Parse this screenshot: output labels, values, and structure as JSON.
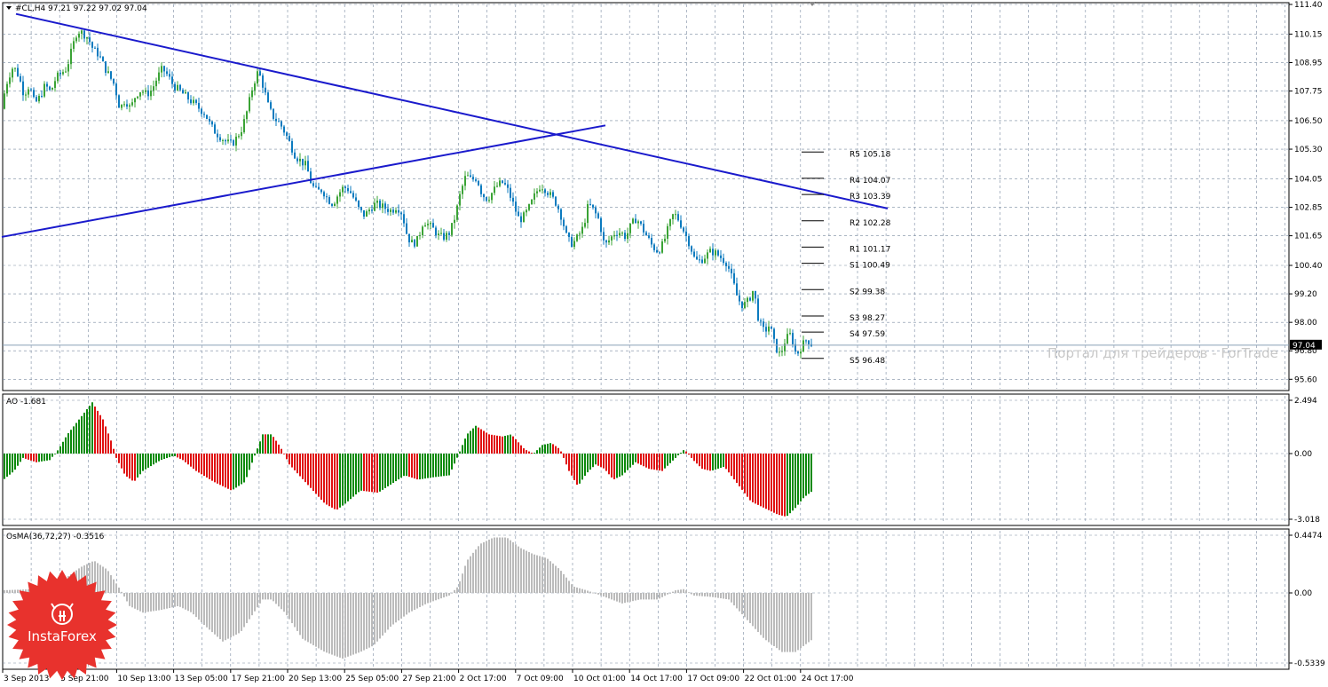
{
  "header": {
    "text": "#CL,H4  97.21 97.22 97.02 97.04"
  },
  "watermark": "Портал для трейдеров - ForTrade",
  "logo": {
    "text": "InstaForex",
    "icon": "bull-head-icon",
    "color": "#e8322d"
  },
  "colors": {
    "candle_up": "#3aa335",
    "candle_down": "#0c7bbf",
    "trendline": "#1a1acc",
    "ao_up": "#0a8a0a",
    "ao_down": "#e01010",
    "osma": "#bbbbbb",
    "price_tag_bg": "#000000"
  },
  "chart_data": [
    {
      "type": "candlestick",
      "title": "#CL,H4",
      "ohlc": [
        97.21,
        97.22,
        97.02,
        97.04
      ],
      "current_price": "97.04",
      "ylim": [
        95.2,
        111.4
      ],
      "y_ticks": [
        "111.40",
        "110.15",
        "108.95",
        "107.75",
        "106.50",
        "105.30",
        "104.05",
        "102.85",
        "101.65",
        "100.40",
        "99.20",
        "98.00",
        "96.80",
        "95.60"
      ],
      "x_ticks": [
        "3 Sep 2013",
        "5 Sep 21:00",
        "10 Sep 13:00",
        "13 Sep 05:00",
        "17 Sep 21:00",
        "20 Sep 13:00",
        "25 Sep 05:00",
        "27 Sep 21:00",
        "2 Oct 17:00",
        "7 Oct 09:00",
        "10 Oct 01:00",
        "14 Oct 17:00",
        "17 Oct 09:00",
        "22 Oct 01:00",
        "24 Oct 17:00"
      ],
      "path_points": [
        [
          0,
          107.0
        ],
        [
          8,
          108.3
        ],
        [
          14,
          108.8
        ],
        [
          20,
          108.4
        ],
        [
          26,
          107.6
        ],
        [
          32,
          108.0
        ],
        [
          38,
          107.2
        ],
        [
          44,
          107.5
        ],
        [
          50,
          108.0
        ],
        [
          56,
          107.7
        ],
        [
          62,
          108.3
        ],
        [
          68,
          108.5
        ],
        [
          74,
          108.7
        ],
        [
          80,
          109.5
        ],
        [
          86,
          110.3
        ],
        [
          92,
          110.2
        ],
        [
          98,
          110.0
        ],
        [
          104,
          109.5
        ],
        [
          110,
          109.3
        ],
        [
          116,
          108.8
        ],
        [
          122,
          108.4
        ],
        [
          128,
          108.0
        ],
        [
          134,
          107.0
        ],
        [
          140,
          107.4
        ],
        [
          146,
          107.0
        ],
        [
          152,
          107.6
        ],
        [
          158,
          107.8
        ],
        [
          164,
          107.6
        ],
        [
          170,
          107.8
        ],
        [
          176,
          108.3
        ],
        [
          182,
          108.7
        ],
        [
          188,
          108.4
        ],
        [
          194,
          108.0
        ],
        [
          200,
          107.8
        ],
        [
          206,
          107.6
        ],
        [
          212,
          107.4
        ],
        [
          218,
          107.2
        ],
        [
          224,
          107.0
        ],
        [
          230,
          106.8
        ],
        [
          236,
          106.3
        ],
        [
          242,
          106.0
        ],
        [
          248,
          105.8
        ],
        [
          254,
          105.6
        ],
        [
          260,
          105.5
        ],
        [
          266,
          105.8
        ],
        [
          272,
          106.2
        ],
        [
          278,
          107.0
        ],
        [
          284,
          108.0
        ],
        [
          290,
          108.6
        ],
        [
          296,
          107.9
        ],
        [
          302,
          107.0
        ],
        [
          308,
          106.6
        ],
        [
          314,
          106.4
        ],
        [
          320,
          106.0
        ],
        [
          326,
          105.5
        ],
        [
          332,
          105.0
        ],
        [
          338,
          104.8
        ],
        [
          344,
          104.6
        ],
        [
          350,
          103.8
        ],
        [
          356,
          103.5
        ],
        [
          362,
          103.6
        ],
        [
          368,
          103.2
        ],
        [
          374,
          103.0
        ],
        [
          380,
          103.4
        ],
        [
          386,
          103.7
        ],
        [
          392,
          103.6
        ],
        [
          398,
          103.2
        ],
        [
          404,
          102.7
        ],
        [
          410,
          102.5
        ],
        [
          416,
          102.8
        ],
        [
          422,
          103.0
        ],
        [
          428,
          102.9
        ],
        [
          434,
          102.8
        ],
        [
          440,
          102.7
        ],
        [
          446,
          102.9
        ],
        [
          452,
          102.6
        ],
        [
          458,
          101.6
        ],
        [
          464,
          101.3
        ],
        [
          470,
          101.5
        ],
        [
          476,
          102.3
        ],
        [
          482,
          102.1
        ],
        [
          488,
          101.9
        ],
        [
          494,
          101.6
        ],
        [
          500,
          101.6
        ],
        [
          506,
          101.8
        ],
        [
          512,
          102.5
        ],
        [
          518,
          103.5
        ],
        [
          524,
          104.2
        ],
        [
          530,
          104.0
        ],
        [
          536,
          104.1
        ],
        [
          542,
          103.4
        ],
        [
          548,
          103.2
        ],
        [
          554,
          103.5
        ],
        [
          560,
          103.8
        ],
        [
          566,
          103.9
        ],
        [
          572,
          103.5
        ],
        [
          578,
          102.9
        ],
        [
          584,
          102.3
        ],
        [
          590,
          102.5
        ],
        [
          596,
          102.9
        ],
        [
          602,
          103.4
        ],
        [
          608,
          103.8
        ],
        [
          614,
          103.6
        ],
        [
          620,
          103.3
        ],
        [
          626,
          103.0
        ],
        [
          632,
          102.4
        ],
        [
          638,
          101.5
        ],
        [
          644,
          101.3
        ],
        [
          650,
          101.6
        ],
        [
          656,
          102.0
        ],
        [
          662,
          103.0
        ],
        [
          668,
          102.7
        ],
        [
          674,
          102.3
        ],
        [
          680,
          101.2
        ],
        [
          686,
          101.5
        ],
        [
          692,
          101.8
        ],
        [
          698,
          101.8
        ],
        [
          704,
          101.6
        ],
        [
          710,
          102.1
        ],
        [
          716,
          102.4
        ],
        [
          722,
          102.0
        ],
        [
          728,
          101.6
        ],
        [
          734,
          101.2
        ],
        [
          740,
          101.0
        ],
        [
          746,
          101.3
        ],
        [
          752,
          102.0
        ],
        [
          758,
          102.6
        ],
        [
          764,
          102.3
        ],
        [
          770,
          101.8
        ],
        [
          776,
          101.3
        ],
        [
          782,
          100.6
        ],
        [
          788,
          100.6
        ],
        [
          794,
          100.8
        ],
        [
          800,
          101.0
        ],
        [
          806,
          100.9
        ],
        [
          812,
          100.7
        ],
        [
          818,
          100.5
        ],
        [
          824,
          99.8
        ],
        [
          830,
          99.0
        ],
        [
          836,
          98.7
        ],
        [
          842,
          98.9
        ],
        [
          848,
          99.4
        ],
        [
          854,
          98.0
        ],
        [
          860,
          97.6
        ],
        [
          866,
          97.9
        ],
        [
          872,
          97.0
        ],
        [
          878,
          96.6
        ],
        [
          884,
          97.3
        ],
        [
          890,
          97.5
        ],
        [
          896,
          96.6
        ],
        [
          902,
          97.0
        ],
        [
          908,
          97.3
        ],
        [
          914,
          97.04
        ]
      ],
      "trendlines": [
        {
          "from": [
            18,
            111.0
          ],
          "to": [
            1000,
            102.8
          ]
        },
        {
          "from": [
            2,
            101.6
          ],
          "to": [
            682,
            106.3
          ]
        }
      ],
      "pivot_levels": [
        {
          "label": "R5 105.18",
          "value": 105.18
        },
        {
          "label": "R4 104.07",
          "value": 104.07
        },
        {
          "label": "R3 103.39",
          "value": 103.39
        },
        {
          "label": "R2 102.28",
          "value": 102.28
        },
        {
          "label": "R1 101.17",
          "value": 101.17
        },
        {
          "label": "S1 100.49",
          "value": 100.49
        },
        {
          "label": "S2 99.38",
          "value": 99.38
        },
        {
          "label": "S3 98.27",
          "value": 98.27
        },
        {
          "label": "S4 97.59",
          "value": 97.59
        },
        {
          "label": "S5 96.48",
          "value": 96.48
        }
      ]
    },
    {
      "type": "histogram",
      "title": "AO -1.681",
      "ylim": [
        -3.018,
        2.494
      ],
      "y_ticks": [
        "2.494",
        "0.00",
        "-3.018"
      ],
      "bar_step_px": 3,
      "keyframes": [
        [
          0,
          -1.3
        ],
        [
          15,
          -0.8
        ],
        [
          25,
          -0.2
        ],
        [
          40,
          -0.4
        ],
        [
          55,
          -0.3
        ],
        [
          65,
          0.2
        ],
        [
          75,
          0.9
        ],
        [
          90,
          1.7
        ],
        [
          103,
          2.4
        ],
        [
          115,
          1.6
        ],
        [
          125,
          0.5
        ],
        [
          130,
          -0.2
        ],
        [
          140,
          -1.0
        ],
        [
          150,
          -1.3
        ],
        [
          160,
          -0.8
        ],
        [
          180,
          -0.3
        ],
        [
          195,
          -0.1
        ],
        [
          205,
          -0.3
        ],
        [
          220,
          -0.8
        ],
        [
          240,
          -1.3
        ],
        [
          260,
          -1.7
        ],
        [
          275,
          -1.3
        ],
        [
          285,
          -0.2
        ],
        [
          295,
          0.9
        ],
        [
          305,
          0.9
        ],
        [
          315,
          0.3
        ],
        [
          325,
          -0.5
        ],
        [
          345,
          -1.4
        ],
        [
          365,
          -2.3
        ],
        [
          378,
          -2.6
        ],
        [
          388,
          -2.3
        ],
        [
          405,
          -1.7
        ],
        [
          425,
          -1.8
        ],
        [
          440,
          -1.4
        ],
        [
          455,
          -1.0
        ],
        [
          470,
          -1.2
        ],
        [
          485,
          -1.1
        ],
        [
          505,
          -1.0
        ],
        [
          515,
          -0.1
        ],
        [
          525,
          0.9
        ],
        [
          535,
          1.3
        ],
        [
          550,
          0.9
        ],
        [
          565,
          0.8
        ],
        [
          575,
          0.9
        ],
        [
          590,
          0.2
        ],
        [
          600,
          0.0
        ],
        [
          610,
          0.4
        ],
        [
          620,
          0.5
        ],
        [
          630,
          0.2
        ],
        [
          640,
          -0.8
        ],
        [
          650,
          -1.5
        ],
        [
          660,
          -0.9
        ],
        [
          670,
          -0.5
        ],
        [
          680,
          -0.7
        ],
        [
          690,
          -1.2
        ],
        [
          700,
          -1.0
        ],
        [
          715,
          -0.4
        ],
        [
          730,
          -0.7
        ],
        [
          745,
          -0.8
        ],
        [
          760,
          -0.2
        ],
        [
          770,
          0.2
        ],
        [
          780,
          -0.3
        ],
        [
          790,
          -0.7
        ],
        [
          800,
          -0.8
        ],
        [
          815,
          -0.6
        ],
        [
          830,
          -1.4
        ],
        [
          845,
          -2.2
        ],
        [
          860,
          -2.5
        ],
        [
          875,
          -2.8
        ],
        [
          885,
          -2.9
        ],
        [
          895,
          -2.5
        ],
        [
          905,
          -2.0
        ],
        [
          915,
          -1.7
        ]
      ]
    },
    {
      "type": "histogram",
      "title": "OsMA(36,72,27) -0.3516",
      "ylim": [
        -0.5339,
        0.4474
      ],
      "y_ticks": [
        "0.4474",
        "0.00",
        "-0.5339"
      ],
      "bar_step_px": 3,
      "keyframes": [
        [
          0,
          0.02
        ],
        [
          40,
          0.03
        ],
        [
          70,
          0.1
        ],
        [
          90,
          0.2
        ],
        [
          105,
          0.25
        ],
        [
          120,
          0.18
        ],
        [
          135,
          0.02
        ],
        [
          145,
          -0.1
        ],
        [
          160,
          -0.15
        ],
        [
          180,
          -0.13
        ],
        [
          200,
          -0.1
        ],
        [
          215,
          -0.15
        ],
        [
          230,
          -0.25
        ],
        [
          250,
          -0.37
        ],
        [
          270,
          -0.3
        ],
        [
          285,
          -0.15
        ],
        [
          295,
          -0.05
        ],
        [
          305,
          -0.05
        ],
        [
          320,
          -0.15
        ],
        [
          340,
          -0.35
        ],
        [
          365,
          -0.45
        ],
        [
          385,
          -0.5
        ],
        [
          405,
          -0.45
        ],
        [
          420,
          -0.4
        ],
        [
          440,
          -0.25
        ],
        [
          460,
          -0.15
        ],
        [
          480,
          -0.08
        ],
        [
          505,
          -0.02
        ],
        [
          515,
          0.05
        ],
        [
          525,
          0.25
        ],
        [
          540,
          0.38
        ],
        [
          555,
          0.43
        ],
        [
          570,
          0.43
        ],
        [
          585,
          0.35
        ],
        [
          600,
          0.3
        ],
        [
          615,
          0.27
        ],
        [
          630,
          0.18
        ],
        [
          645,
          0.05
        ],
        [
          660,
          0.02
        ],
        [
          680,
          -0.03
        ],
        [
          700,
          -0.08
        ],
        [
          720,
          -0.05
        ],
        [
          740,
          -0.05
        ],
        [
          760,
          0.02
        ],
        [
          770,
          0.03
        ],
        [
          780,
          -0.02
        ],
        [
          800,
          -0.03
        ],
        [
          820,
          -0.05
        ],
        [
          840,
          -0.2
        ],
        [
          860,
          -0.35
        ],
        [
          880,
          -0.45
        ],
        [
          895,
          -0.45
        ],
        [
          905,
          -0.4
        ],
        [
          915,
          -0.35
        ]
      ]
    }
  ]
}
